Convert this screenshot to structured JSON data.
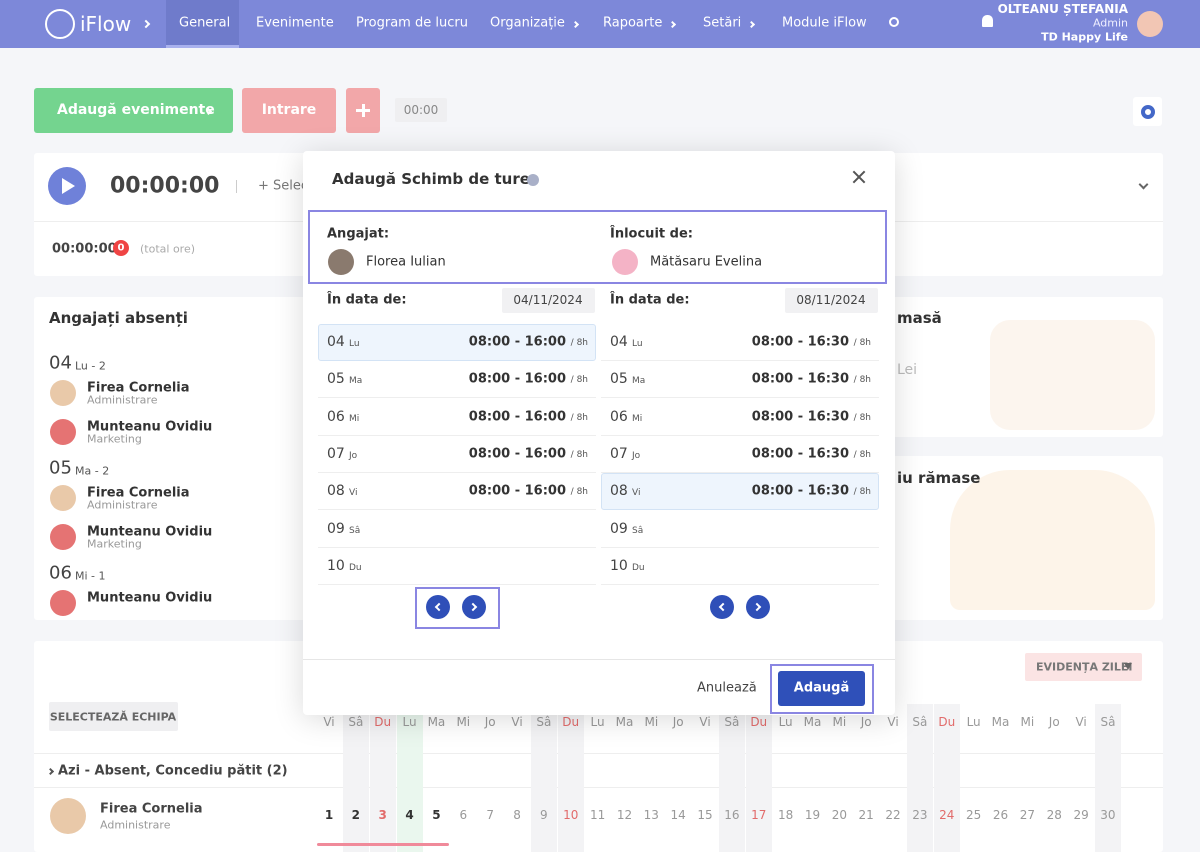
{
  "nav": {
    "brand": "iFlow",
    "items": [
      "General",
      "Evenimente",
      "Program de lucru",
      "Organizație",
      "Rapoarte",
      "Setări",
      "Module iFlow"
    ],
    "user": {
      "name": "OLTEANU ȘTEFANIA",
      "role": "Admin",
      "company": "TD Happy Life"
    }
  },
  "toolbar": {
    "add_events": "Adaugă evenimente",
    "entry": "Intrare",
    "time": "00:00"
  },
  "timer": {
    "time": "00:00:00",
    "select": "+ Selec",
    "total_time": "00:00:00",
    "count": "0",
    "total_label": "(total ore)"
  },
  "absent": {
    "title": "Angajați absenți",
    "days": [
      {
        "day": "04",
        "label": "Lu - 2",
        "people": [
          {
            "name": "Firea Cornelia",
            "dept": "Administrare"
          },
          {
            "name": "Munteanu Ovidiu",
            "dept": "Marketing"
          }
        ]
      },
      {
        "day": "05",
        "label": "Ma - 2",
        "people": [
          {
            "name": "Firea Cornelia",
            "dept": "Administrare"
          },
          {
            "name": "Munteanu Ovidiu",
            "dept": "Marketing"
          }
        ]
      },
      {
        "day": "06",
        "label": "Mi - 1",
        "people": [
          {
            "name": "Munteanu Ovidiu"
          }
        ]
      }
    ]
  },
  "side_cards": {
    "meal_title": "masă",
    "meal_value": "Lei",
    "leave_title": "iu rămase"
  },
  "calendar": {
    "filter": "EVIDENȚA ZILEI",
    "team_button": "SELECTEAZĂ ECHIPA",
    "weekdays": [
      "Vi",
      "Sâ",
      "Du",
      "Lu",
      "Ma",
      "Mi",
      "Jo",
      "Vi",
      "Sâ",
      "Du",
      "Lu",
      "Ma",
      "Mi",
      "Jo",
      "Vi",
      "Sâ",
      "Du",
      "Lu",
      "Ma",
      "Mi",
      "Jo",
      "Vi",
      "Sâ",
      "Du",
      "Lu",
      "Ma",
      "Mi",
      "Jo",
      "Vi",
      "Sâ"
    ],
    "group": "Azi - Absent, Concediu pătit (2)",
    "employee": {
      "name": "Firea Cornelia",
      "dept": "Administrare"
    },
    "days": [
      1,
      2,
      3,
      4,
      5,
      6,
      7,
      8,
      9,
      10,
      11,
      12,
      13,
      14,
      15,
      16,
      17,
      18,
      19,
      20,
      21,
      22,
      23,
      24,
      25,
      26,
      27,
      28,
      29,
      30
    ]
  },
  "modal": {
    "title": "Adaugă Schimb de ture",
    "employee_label": "Angajat:",
    "employee": "Florea Iulian",
    "replacement_label": "Înlocuit de:",
    "replacement": "Mătăsaru Evelina",
    "date_label": "În data de:",
    "left_date": "04/11/2024",
    "right_date": "08/11/2024",
    "left_rows": [
      {
        "day": "04",
        "weekday": "Lu",
        "shift": "08:00 - 16:00",
        "hours": "/ 8h"
      },
      {
        "day": "05",
        "weekday": "Ma",
        "shift": "08:00 - 16:00",
        "hours": "/ 8h"
      },
      {
        "day": "06",
        "weekday": "Mi",
        "shift": "08:00 - 16:00",
        "hours": "/ 8h"
      },
      {
        "day": "07",
        "weekday": "Jo",
        "shift": "08:00 - 16:00",
        "hours": "/ 8h"
      },
      {
        "day": "08",
        "weekday": "Vi",
        "shift": "08:00 - 16:00",
        "hours": "/ 8h"
      },
      {
        "day": "09",
        "weekday": "Sâ"
      },
      {
        "day": "10",
        "weekday": "Du"
      }
    ],
    "right_rows": [
      {
        "day": "04",
        "weekday": "Lu",
        "shift": "08:00 - 16:30",
        "hours": "/ 8h"
      },
      {
        "day": "05",
        "weekday": "Ma",
        "shift": "08:00 - 16:30",
        "hours": "/ 8h"
      },
      {
        "day": "06",
        "weekday": "Mi",
        "shift": "08:00 - 16:30",
        "hours": "/ 8h"
      },
      {
        "day": "07",
        "weekday": "Jo",
        "shift": "08:00 - 16:30",
        "hours": "/ 8h"
      },
      {
        "day": "08",
        "weekday": "Vi",
        "shift": "08:00 - 16:30",
        "hours": "/ 8h"
      },
      {
        "day": "09",
        "weekday": "Sâ"
      },
      {
        "day": "10",
        "weekday": "Du"
      }
    ],
    "cancel": "Anulează",
    "submit": "Adaugă"
  }
}
